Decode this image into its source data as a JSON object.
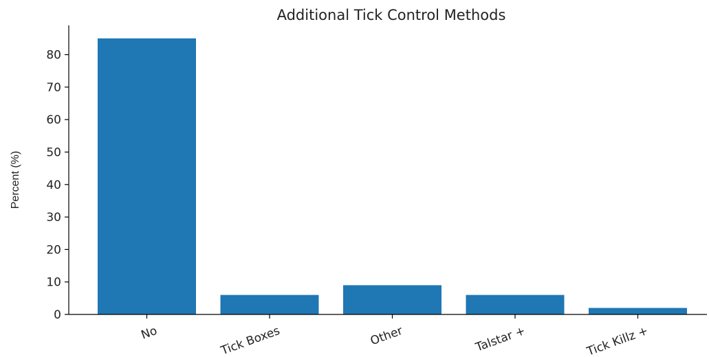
{
  "chart_data": {
    "type": "bar",
    "title": "Additional Tick Control Methods",
    "xlabel": "",
    "ylabel": "Percent (%)",
    "categories": [
      "No",
      "Tick Boxes",
      "Other",
      "Talstar +",
      "Tick Killz +"
    ],
    "values": [
      85,
      6,
      9,
      6,
      2
    ],
    "ylim": [
      0,
      89
    ],
    "yticks": [
      0,
      10,
      20,
      30,
      40,
      50,
      60,
      70,
      80
    ],
    "bar_color": "#1f77b4",
    "grid": false,
    "legend": "none"
  }
}
